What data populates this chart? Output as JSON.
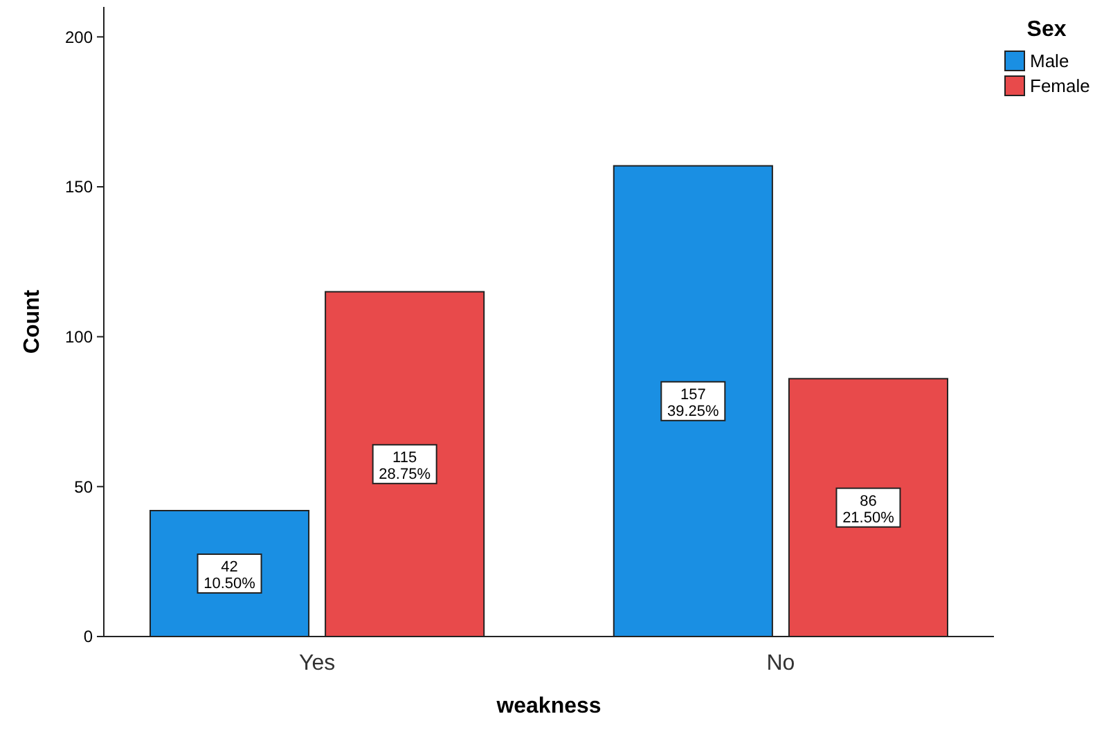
{
  "chart_data": {
    "type": "bar",
    "xlabel": "weakness",
    "ylabel": "Count",
    "legend_title": "Sex",
    "categories": [
      "Yes",
      "No"
    ],
    "series": [
      {
        "name": "Male",
        "color": "#1a8fe3",
        "values": [
          42,
          157
        ],
        "value_labels": [
          "42\n10.50%",
          "157\n39.25%"
        ]
      },
      {
        "name": "Female",
        "color": "#e84a4b",
        "values": [
          115,
          86
        ],
        "value_labels": [
          "115\n28.75%",
          "86\n21.50%"
        ]
      }
    ],
    "ylim": [
      0,
      210
    ],
    "yticks": [
      0,
      50,
      100,
      150,
      200
    ],
    "grid": false,
    "legend": "top right"
  }
}
